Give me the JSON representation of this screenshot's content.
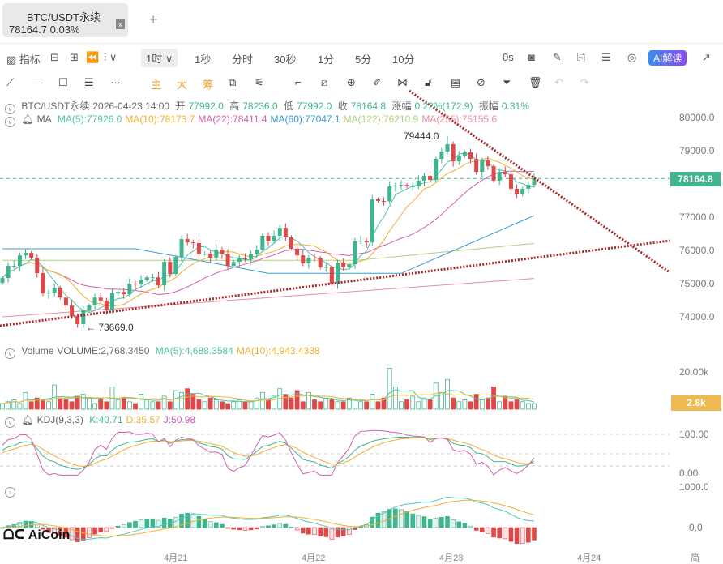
{
  "tab": {
    "title": "BTC/USDT永续",
    "price": "78164.7",
    "change": "0.03%",
    "close": "x",
    "add": "+"
  },
  "toolbar": {
    "indicator": "指标",
    "interval": "1时 ∨",
    "intervals": [
      "1秒",
      "分时",
      "30秒",
      "1分",
      "5分",
      "10分"
    ],
    "countdown": "0s",
    "ai": "AI解读"
  },
  "drawbar": {
    "main": "主",
    "big": "大",
    "chips": "筹"
  },
  "ohlc": {
    "symbol": "BTC/USDT永续",
    "time": "2026-04-23 14:00",
    "open_l": "开",
    "open": "77992.0",
    "high_l": "高",
    "high": "78236.0",
    "low_l": "低",
    "low": "77992.0",
    "close_l": "收",
    "close": "78164.8",
    "chg_l": "涨幅",
    "chg": "0.22%(172.9)",
    "amp_l": "振幅",
    "amp": "0.31%"
  },
  "ma": {
    "label": "MA",
    "items": [
      {
        "t": "MA(5):77926.0",
        "c": "#4fc4a8"
      },
      {
        "t": "MA(10):78173.7",
        "c": "#f0b030"
      },
      {
        "t": "MA(22):78411.4",
        "c": "#d060b0"
      },
      {
        "t": "MA(60):77047.1",
        "c": "#3a9ad8"
      },
      {
        "t": "MA(122):76210.9",
        "c": "#b0d080"
      },
      {
        "t": "MA(255):75155.6",
        "c": "#e890a0"
      }
    ]
  },
  "volume": {
    "label": "Volume",
    "value": "VOLUME:2,768.3450",
    "ma5": "MA(5):4,688.3584",
    "ma10": "MA(10):4,943.4338",
    "tag": "2.8k",
    "axis": "20.00k"
  },
  "kdj": {
    "label": "KDJ(9,3,3)",
    "k": "K:40.71",
    "d": "D:35.57",
    "j": "J:50.98",
    "axis": [
      "100.00",
      "0.00"
    ]
  },
  "macd": {
    "axis": [
      "1000.0",
      "0.0"
    ]
  },
  "price_axis": [
    "80000.0",
    "79000.0",
    "77000.0",
    "76000.0",
    "75000.0",
    "74000.0"
  ],
  "last_price": "78164.8",
  "annotations": {
    "high": "79444.0",
    "low": "← 73669.0"
  },
  "x_axis": [
    "4月21",
    "4月22",
    "4月23",
    "4月24",
    "简"
  ],
  "logo": "AiCoin",
  "colors": {
    "up": "#3fb58e",
    "down": "#e04848",
    "trend": "#a82828"
  },
  "chart_data": {
    "type": "candlestick",
    "ylim": [
      73500,
      80400
    ],
    "closes": [
      75170,
      75535,
      75535,
      75850,
      75925,
      75780,
      75315,
      74705,
      74730,
      74875,
      74580,
      74340,
      74020,
      73780,
      74190,
      74340,
      74580,
      74490,
      74220,
      74705,
      74750,
      74680,
      75000,
      74975,
      75120,
      75190,
      75190,
      74950,
      75655,
      75290,
      75800,
      76340,
      76240,
      76220,
      75900,
      75900,
      75780,
      76020,
      75900,
      75535,
      75655,
      75755,
      75740,
      75900,
      76020,
      76440,
      76290,
      76440,
      76680,
      76390,
      76050,
      75850,
      75610,
      75780,
      75770,
      75490,
      75500,
      75000,
      75630,
      75490,
      75580,
      76270,
      76290,
      76240,
      77535,
      77490,
      77480,
      77925,
      77950,
      77970,
      77930,
      77930,
      78100,
      78245,
      78120,
      78755,
      78975,
      79195,
      78680,
      78850,
      78950,
      78755,
      78365,
      78705,
      78535,
      78100,
      78365,
      78290,
      77855,
      77685,
      77855,
      77970,
      78165
    ],
    "volumes_k": [
      3,
      4,
      5,
      3,
      9,
      4,
      6,
      5,
      4,
      13,
      6,
      5,
      4,
      7,
      8,
      6,
      3,
      5,
      4,
      12,
      5,
      6,
      4,
      3,
      8,
      5,
      4,
      4,
      7,
      4,
      10,
      9,
      11,
      8,
      5,
      4,
      6,
      5,
      4,
      3,
      4,
      5,
      4,
      4,
      6,
      9,
      5,
      7,
      11,
      8,
      6,
      10,
      4,
      9,
      5,
      4,
      6,
      5,
      4,
      4,
      6,
      5,
      4,
      4,
      8,
      4,
      6,
      22,
      12,
      4,
      5,
      7,
      4,
      6,
      5,
      14,
      9,
      16,
      6,
      4,
      5,
      4,
      8,
      5,
      6,
      12,
      4,
      7,
      4,
      5,
      4,
      3,
      3
    ],
    "ma60": [
      76050,
      76050,
      75310,
      75310,
      77047
    ],
    "ma122": [
      75700,
      75700,
      75700,
      76210
    ],
    "ma255": [
      74000,
      75155
    ]
  }
}
